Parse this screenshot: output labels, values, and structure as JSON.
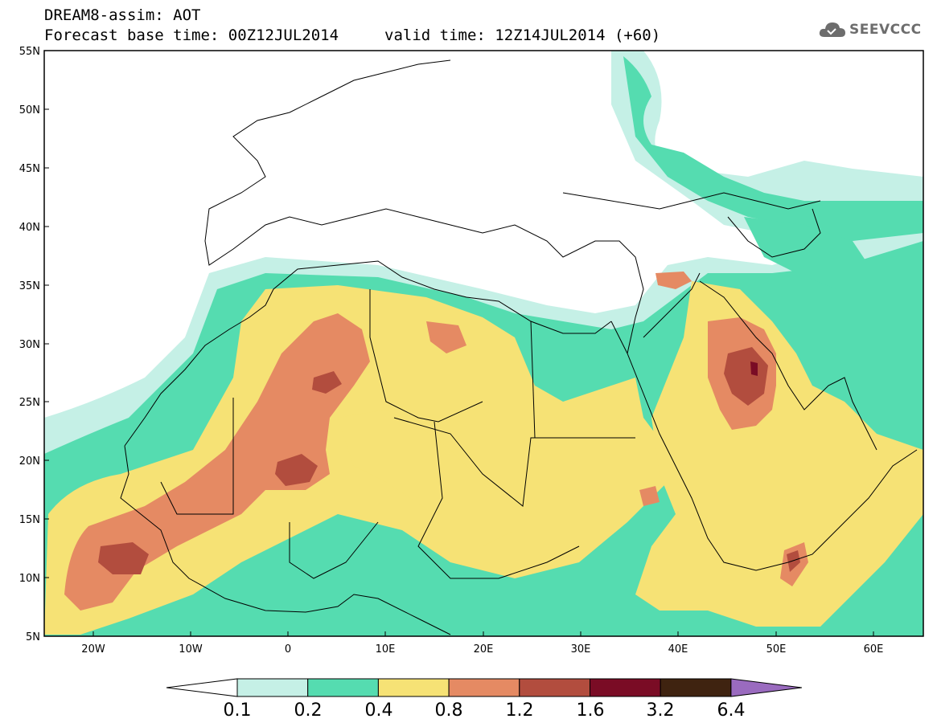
{
  "header": {
    "title_line1": "DREAM8-assim: AOT",
    "title_line2": "Forecast base time: 00Z12JUL2014",
    "valid_time": "valid time: 12Z14JUL2014 (+60)"
  },
  "logo": {
    "text": "SEEVCCC",
    "icon": "cloud-icon"
  },
  "map": {
    "variable": "AOT",
    "lat_labels": [
      "55N",
      "50N",
      "45N",
      "40N",
      "35N",
      "30N",
      "25N",
      "20N",
      "15N",
      "10N",
      "5N"
    ],
    "lon_labels": [
      "20W",
      "10W",
      "0",
      "10E",
      "20E",
      "30E",
      "40E",
      "50E",
      "60E"
    ],
    "lat_range": [
      5,
      55
    ],
    "lon_range": [
      -25,
      65
    ]
  },
  "colorbar": {
    "labels": [
      "0.1",
      "0.2",
      "0.4",
      "0.8",
      "1.2",
      "1.6",
      "3.2",
      "6.4"
    ],
    "colors": [
      "#ffffff",
      "#c5f0e6",
      "#55dcb0",
      "#f6e275",
      "#e58a63",
      "#b24d3e",
      "#7a0c25",
      "#3f2310",
      "#9a6bbf"
    ]
  },
  "colors": {
    "level_01": "#c5f0e6",
    "level_02": "#55dcb0",
    "level_04": "#f6e275",
    "level_08": "#e58a63",
    "level_12": "#b24d3e",
    "level_16": "#7a0c25"
  }
}
